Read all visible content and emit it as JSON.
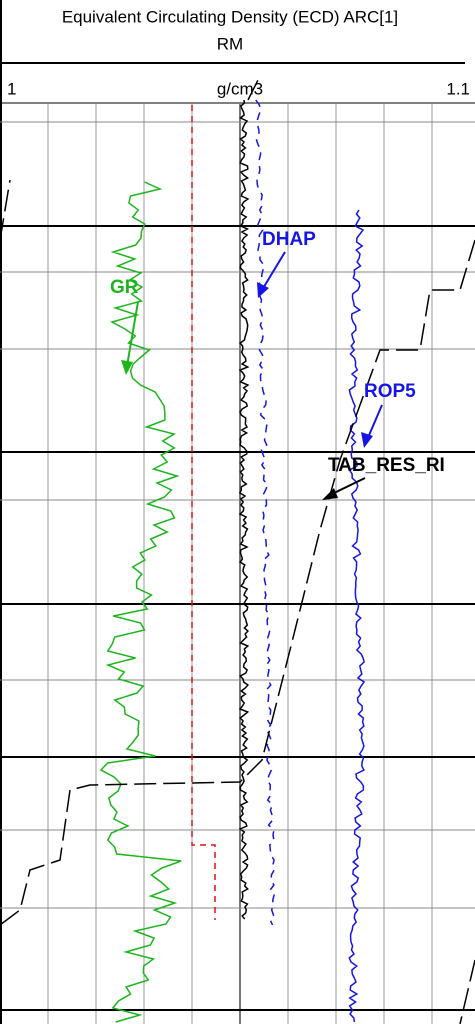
{
  "header": {
    "title": "Equivalent Circulating Density (ECD) ARC[1]",
    "subtitle": "RM"
  },
  "scale": {
    "left": "1",
    "unit": "g/cm3",
    "right": "1.1"
  },
  "curve_labels": {
    "gr": "GR",
    "dhap": "DHAP",
    "rop": "ROP5",
    "res": "TAB_RES_RI"
  }
}
